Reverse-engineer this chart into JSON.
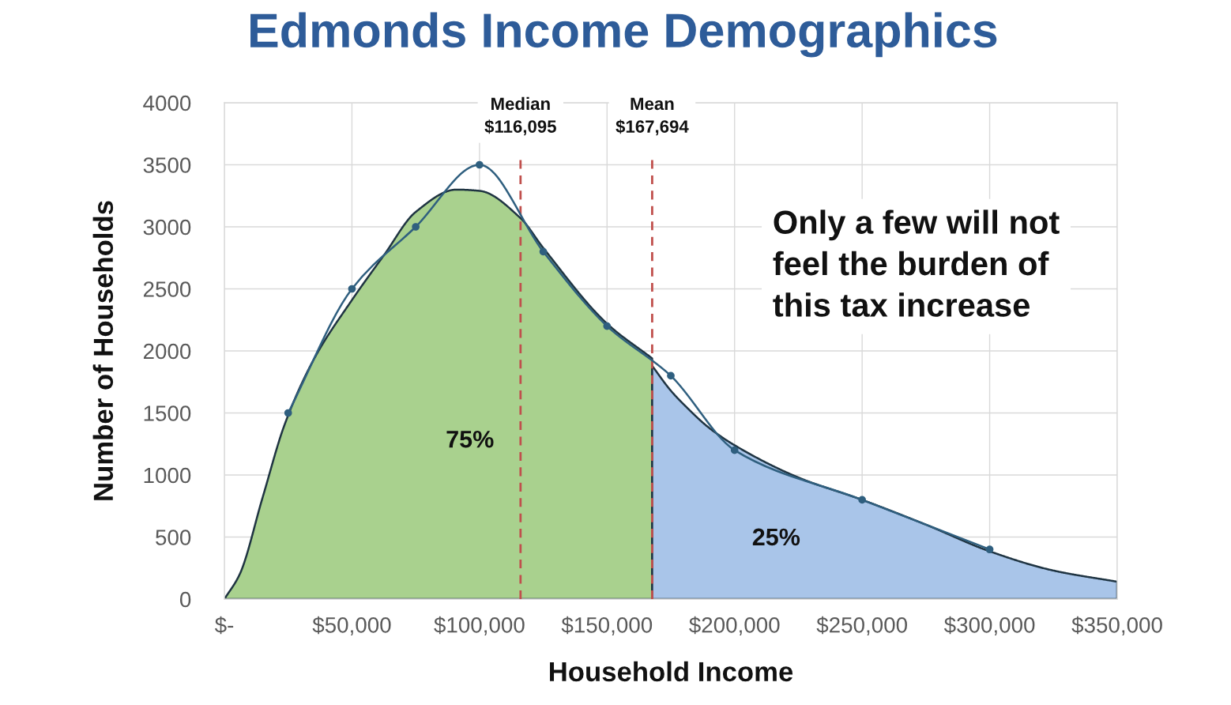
{
  "chart_data": {
    "type": "area",
    "title": "Edmonds Income Demographics",
    "xlabel": "Household Income",
    "ylabel": "Number of Households",
    "xlim": [
      0,
      350000
    ],
    "xticks": [
      {
        "value": 0,
        "label": "$-"
      },
      {
        "value": 50000,
        "label": "$50,000"
      },
      {
        "value": 100000,
        "label": "$100,000"
      },
      {
        "value": 150000,
        "label": "$150,000"
      },
      {
        "value": 200000,
        "label": "$200,000"
      },
      {
        "value": 250000,
        "label": "$250,000"
      },
      {
        "value": 300000,
        "label": "$300,000"
      },
      {
        "value": 350000,
        "label": "$350,000"
      }
    ],
    "ylim": [
      0,
      4000
    ],
    "yticks": [
      0,
      500,
      1000,
      1500,
      2000,
      2500,
      3000,
      3500,
      4000
    ],
    "grid": true,
    "series": [
      {
        "color": "#a9d18e",
        "x": [
          0,
          6000,
          15000,
          23500,
          35000,
          50000,
          62500,
          75000,
          91000,
          100000,
          116095,
          125000,
          150000,
          167694
        ],
        "values": [
          0,
          200,
          820,
          1400,
          1930,
          2410,
          2770,
          3120,
          3300,
          3290,
          3070,
          2830,
          2220,
          1940
        ]
      },
      {
        "color": "#a9c5e9",
        "x": [
          167694,
          175000,
          181000,
          190000,
          200000,
          225000,
          250000,
          275000,
          300000,
          325000,
          350000
        ],
        "values": [
          1880,
          1680,
          1550,
          1380,
          1240,
          980,
          800,
          600,
          385,
          230,
          140
        ]
      },
      {
        "type": "line",
        "marker": "circle",
        "color": "#2f5f7f",
        "x": [
          25000,
          50000,
          75000,
          100000,
          125000,
          150000,
          175000,
          200000,
          250000,
          300000
        ],
        "values": [
          1500,
          2500,
          3000,
          3500,
          2800,
          2200,
          1800,
          1200,
          800,
          400
        ]
      }
    ],
    "ref_lines": [
      {
        "axis": "x",
        "value": 116095,
        "label": "Median\n$116,095",
        "color": "#c0504d",
        "line_style": "dashed"
      },
      {
        "axis": "x",
        "value": 167694,
        "label": "Mean\n$167,694",
        "color": "#c0504d",
        "line_style": "dashed"
      }
    ],
    "annotations": [
      "75%",
      "25%",
      "Only a few will not\nfeel the burden of\nthis tax increase"
    ]
  }
}
